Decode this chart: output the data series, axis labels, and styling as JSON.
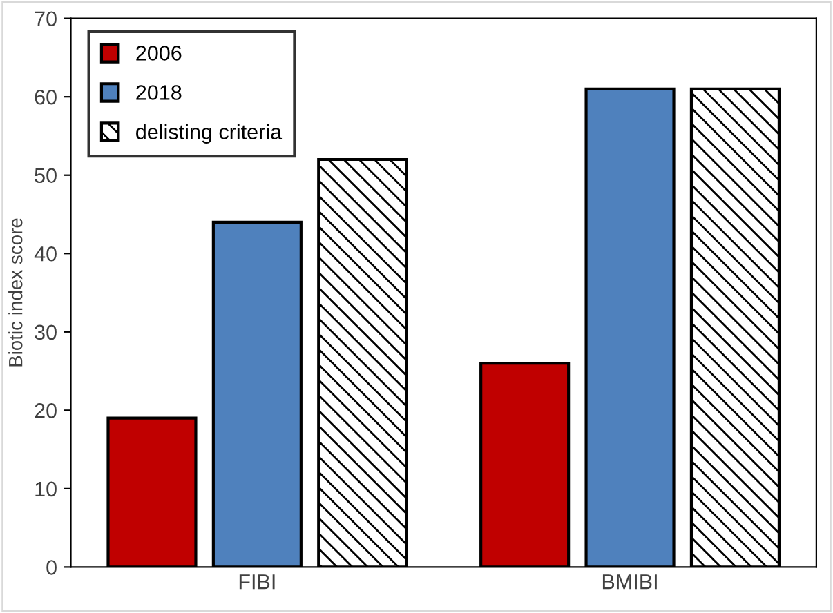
{
  "chart_data": {
    "type": "bar",
    "ylabel": "Biotic index score",
    "categories": [
      "FIBI",
      "BMIBI"
    ],
    "series": [
      {
        "name": "2006",
        "color": "#c00000",
        "values": [
          19,
          26
        ]
      },
      {
        "name": "2018",
        "color": "#4f81bd",
        "values": [
          44,
          61
        ]
      },
      {
        "name": "delisting criteria",
        "values": [
          52,
          61
        ]
      }
    ],
    "ylim": [
      0,
      70
    ],
    "yticks": [
      0,
      10,
      20,
      30,
      40,
      50,
      60,
      70
    ],
    "grid": false,
    "legend": "top left"
  }
}
